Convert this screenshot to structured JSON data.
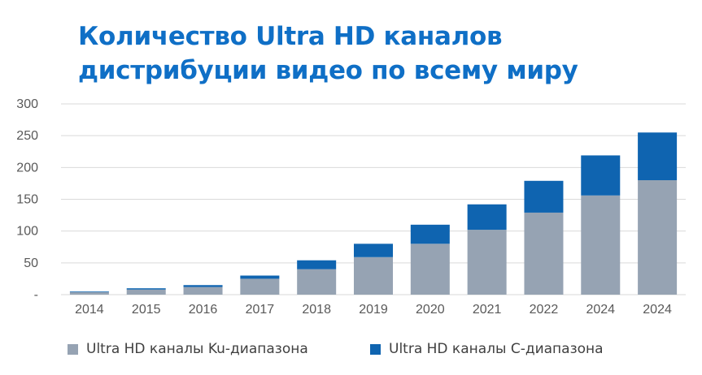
{
  "title_lines": [
    "Количество Ultra HD каналов",
    "дистрибуции видео по всему миру"
  ],
  "colors": {
    "title": "#0f6fc6",
    "ku_band": "#96a3b3",
    "c_band": "#0f64b0",
    "grid": "#d9d9d9",
    "axis_text": "#595959"
  },
  "chart_data": {
    "type": "bar",
    "stacked": true,
    "title": "Количество Ultra HD каналов дистрибуции видео по всему миру",
    "xlabel": "",
    "ylabel": "",
    "categories": [
      "2014",
      "2015",
      "2016",
      "2017",
      "2018",
      "2019",
      "2020",
      "2021",
      "2022",
      "2024",
      "2024"
    ],
    "series": [
      {
        "name": "Ultra HD каналы Ku-диапазона",
        "color": "#96a3b3",
        "values": [
          4,
          8,
          12,
          25,
          40,
          59,
          80,
          102,
          129,
          156,
          180
        ]
      },
      {
        "name": "Ultra HD каналы C-диапазона",
        "color": "#0f64b0",
        "values": [
          1,
          2,
          3,
          5,
          14,
          21,
          30,
          40,
          50,
          63,
          75
        ]
      }
    ],
    "ylim": [
      0,
      300
    ],
    "y_ticks": [
      "-",
      "50",
      "100",
      "150",
      "200",
      "250",
      "300"
    ],
    "grid": true,
    "legend_position": "bottom"
  }
}
